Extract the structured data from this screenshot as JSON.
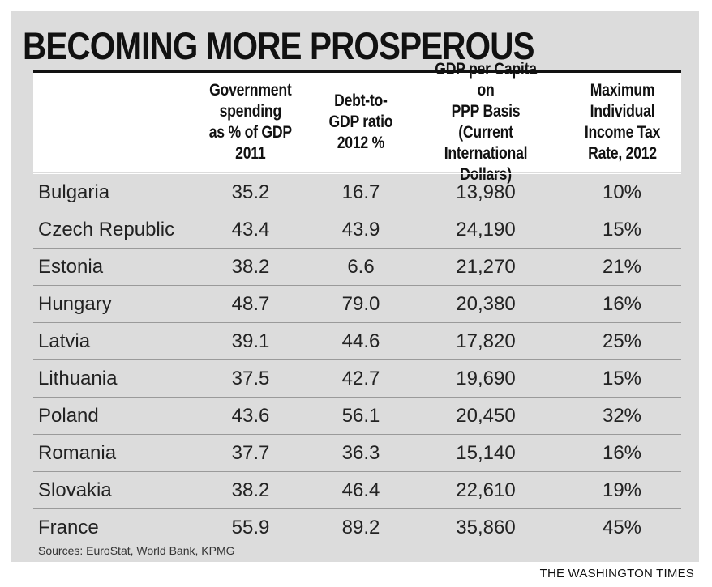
{
  "chart_data": {
    "type": "table",
    "title": "BECOMING MORE PROSPEROUS",
    "columns": [
      "",
      "Government spending as % of GDP 2011",
      "Debt-to-GDP ratio 2012 %",
      "GDP per Capita on PPP Basis (Current International Dollars)",
      "Maximum Individual Income Tax Rate, 2012"
    ],
    "header_lines": [
      [],
      [
        "Government",
        "spending",
        "as % of GDP",
        "2011"
      ],
      [
        "Debt-to-",
        "GDP ratio",
        "2012 %"
      ],
      [
        "GDP per Capita on",
        "PPP Basis (Current",
        "International",
        "Dollars)"
      ],
      [
        "Maximum",
        "Individual",
        "Income Tax",
        "Rate, 2012"
      ]
    ],
    "rows": [
      [
        "Bulgaria",
        "35.2",
        "16.7",
        "13,980",
        "10%"
      ],
      [
        "Czech Republic",
        "43.4",
        "43.9",
        "24,190",
        "15%"
      ],
      [
        "Estonia",
        "38.2",
        "6.6",
        "21,270",
        "21%"
      ],
      [
        "Hungary",
        "48.7",
        "79.0",
        "20,380",
        "16%"
      ],
      [
        "Latvia",
        "39.1",
        "44.6",
        "17,820",
        "25%"
      ],
      [
        "Lithuania",
        "37.5",
        "42.7",
        "19,690",
        "15%"
      ],
      [
        "Poland",
        "43.6",
        "56.1",
        "20,450",
        "32%"
      ],
      [
        "Romania",
        "37.7",
        "36.3",
        "15,140",
        "16%"
      ],
      [
        "Slovakia",
        "38.2",
        "46.4",
        "22,610",
        "19%"
      ],
      [
        "France",
        "55.9",
        "89.2",
        "35,860",
        "45%"
      ]
    ],
    "source": "Sources: EuroStat, World Bank, KPMG",
    "credit": "THE WASHINGTON TIMES"
  },
  "colors": {
    "panel": "#dcdcdc",
    "header_bg": "#ffffff",
    "text": "#111111",
    "row_divider": "#9a9a9a"
  }
}
